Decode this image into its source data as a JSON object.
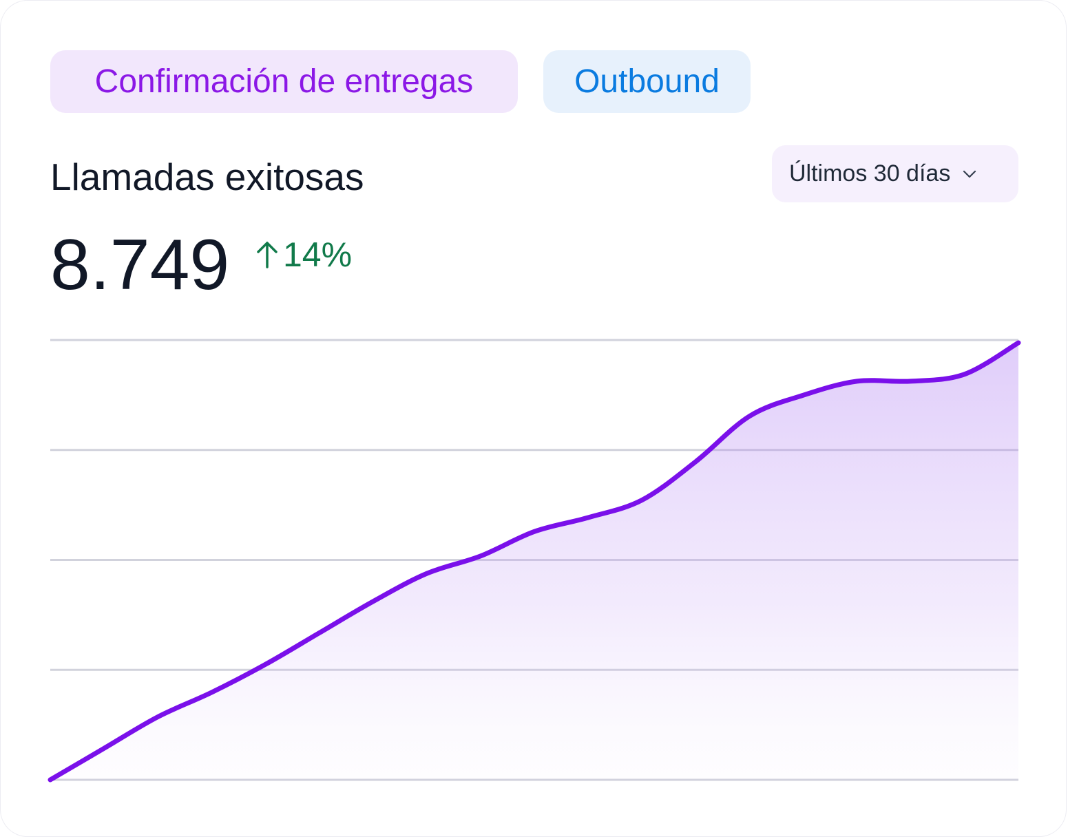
{
  "tags": {
    "primary": {
      "label": "Confirmación de entregas",
      "color": "#8b18e6"
    },
    "secondary": {
      "label": "Outbound",
      "color": "#0a7be0"
    }
  },
  "metric": {
    "title": "Llamadas exitosas",
    "value": "8.749",
    "change": "14%",
    "change_direction": "up",
    "change_color": "#117a4a"
  },
  "range_selector": {
    "label": "Últimos 30 días",
    "icon": "chevron-down-icon"
  },
  "chart_data": {
    "type": "area",
    "x": [
      0,
      1,
      2,
      3,
      4,
      5,
      6,
      7,
      8,
      9,
      10,
      11,
      12,
      13,
      14,
      15,
      16,
      17,
      18
    ],
    "series": [
      {
        "values": [
          0,
          0.9,
          1.8,
          2.5,
          3.3,
          4.2,
          5.1,
          5.9,
          6.4,
          7.1,
          7.5,
          8.0,
          9.1,
          10.4,
          11.0,
          11.4,
          11.4,
          11.6,
          12.5
        ]
      }
    ],
    "ylim": [
      0,
      12.5
    ],
    "grid": true,
    "line_color": "#7a10ea"
  }
}
